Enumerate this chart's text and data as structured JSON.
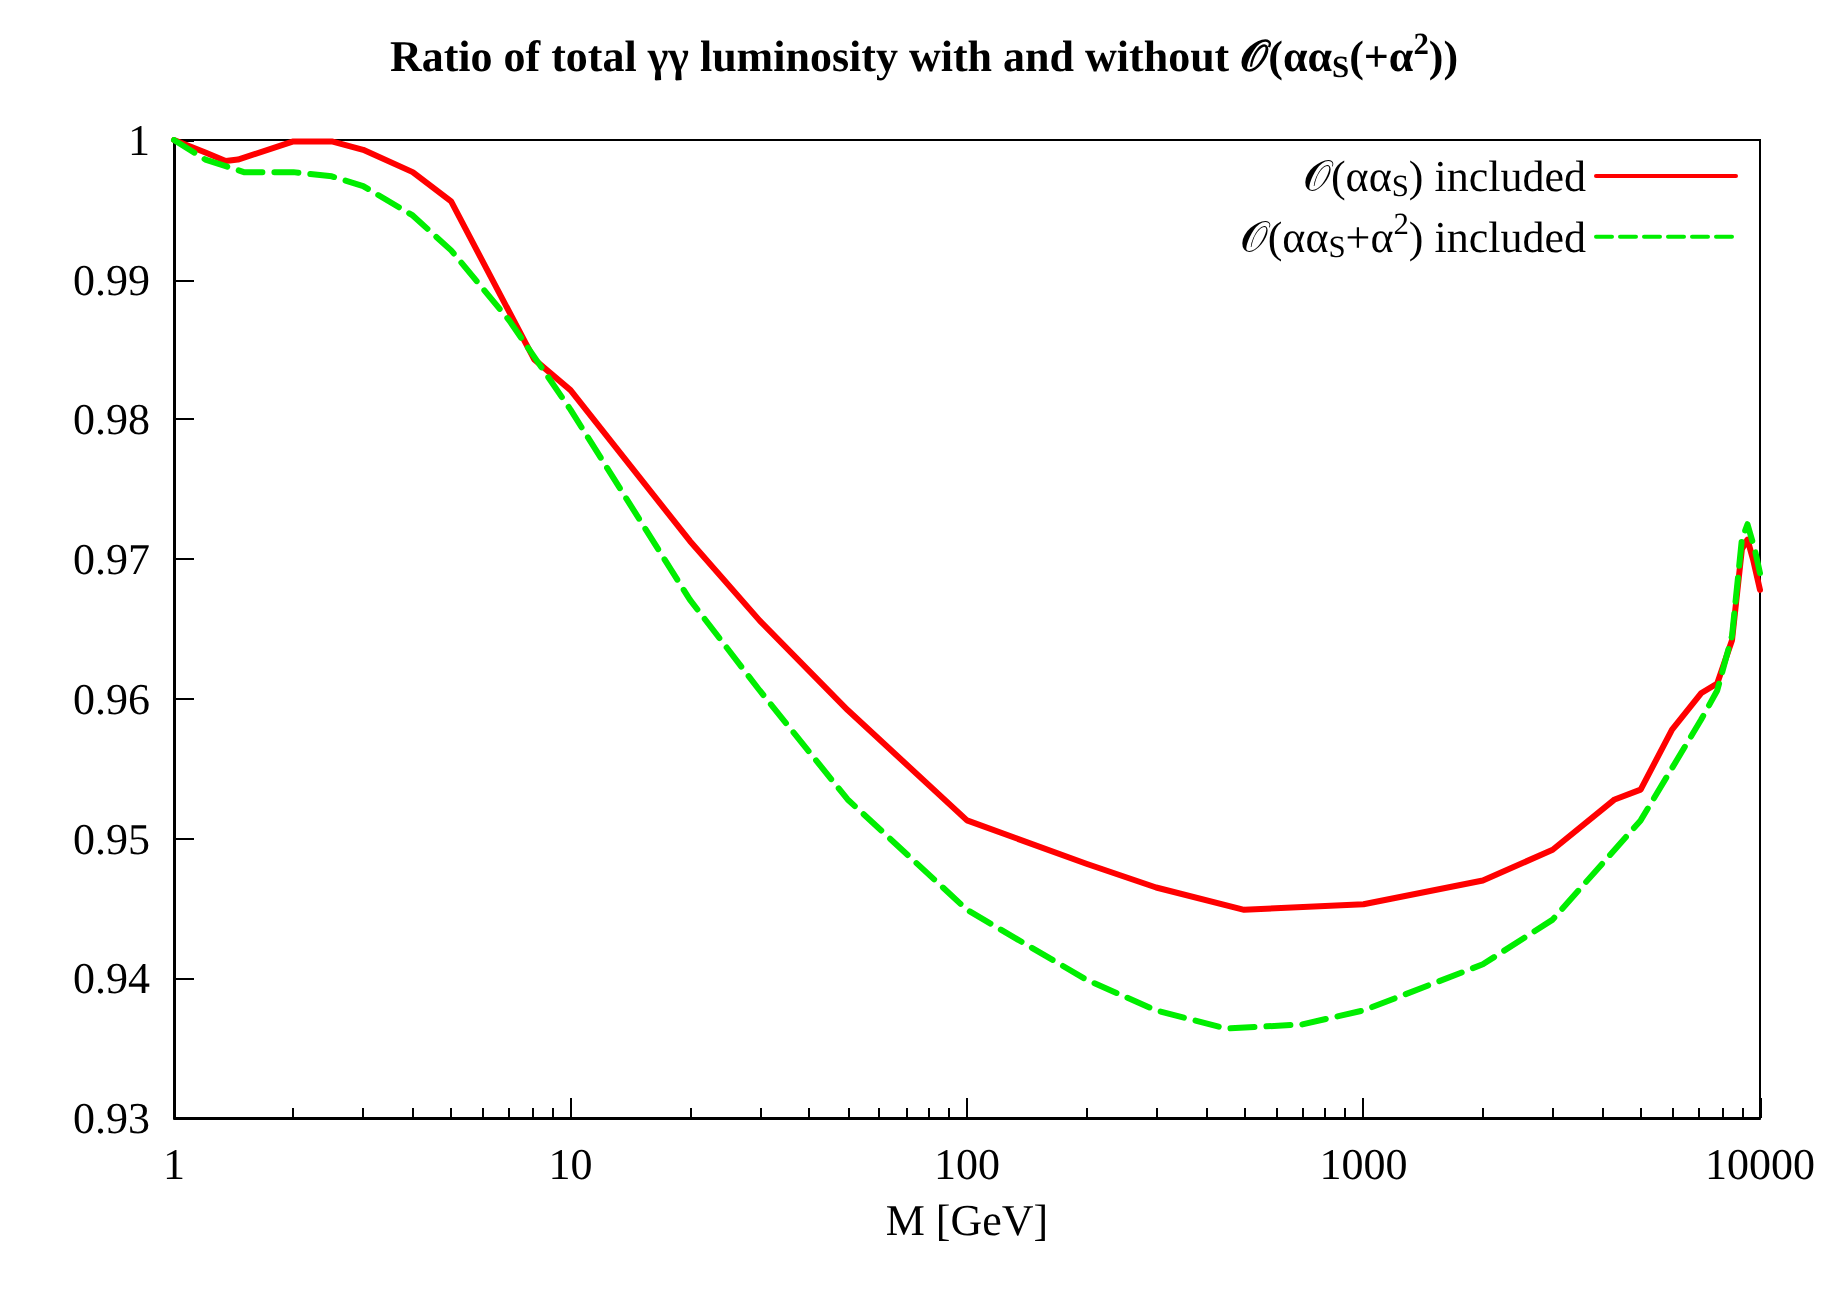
{
  "chart_data": {
    "type": "line",
    "title": "Ratio of total γγ luminosity with and without 𝒪(αα$_{S}$(+α$^{2}$))",
    "xlabel": "M [GeV]",
    "log": "x",
    "xlim": [
      1,
      10000
    ],
    "xticks": [
      1,
      10,
      100,
      1000,
      10000
    ],
    "ylim": [
      0.93,
      1
    ],
    "yticks": [
      0.93,
      0.94,
      0.95,
      0.96,
      0.97,
      0.98,
      0.99,
      1
    ],
    "grid": false,
    "legend": "top right",
    "marker": "none",
    "series": [
      {
        "name": "𝒪(αα$_{S}$) included",
        "color": "#ff0000",
        "line_style": "solid",
        "x": [
          1,
          1.2,
          1.35,
          1.45,
          2,
          2.5,
          3,
          4,
          5,
          8.1,
          10,
          20,
          30,
          50,
          100,
          200,
          300,
          500,
          1000,
          2000,
          3000,
          4300,
          5000,
          6000,
          7100,
          7800,
          8500,
          9000,
          9300,
          9600,
          10000
        ],
        "values": [
          1,
          0.9991,
          0.9985,
          0.9986,
          0.9999,
          0.9999,
          0.9993,
          0.9977,
          0.9956,
          0.9843,
          0.9821,
          0.9713,
          0.9656,
          0.9592,
          0.9513,
          0.9482,
          0.9465,
          0.9449,
          0.9453,
          0.947,
          0.9492,
          0.9528,
          0.9535,
          0.9578,
          0.9604,
          0.9611,
          0.9642,
          0.9707,
          0.9714,
          0.97,
          0.9678
        ]
      },
      {
        "name": "𝒪(αα$_{S}$+α$^{2}$) included",
        "color": "#00ee00",
        "line_style": "dashed",
        "x": [
          1,
          1.2,
          1.5,
          2,
          2.5,
          3,
          4,
          5,
          7,
          10,
          20,
          30,
          50,
          100,
          200,
          300,
          450,
          700,
          1000,
          2000,
          3000,
          5000,
          7100,
          7800,
          8500,
          9000,
          9300,
          9700,
          10000
        ],
        "values": [
          1,
          0.9986,
          0.9977,
          0.9977,
          0.9974,
          0.9967,
          0.9946,
          0.9921,
          0.9871,
          0.9807,
          0.9671,
          0.9606,
          0.9528,
          0.9449,
          0.9399,
          0.9377,
          0.9364,
          0.9367,
          0.9377,
          0.941,
          0.9442,
          0.9513,
          0.9585,
          0.9606,
          0.9645,
          0.9714,
          0.9725,
          0.9707,
          0.969
        ]
      }
    ]
  }
}
